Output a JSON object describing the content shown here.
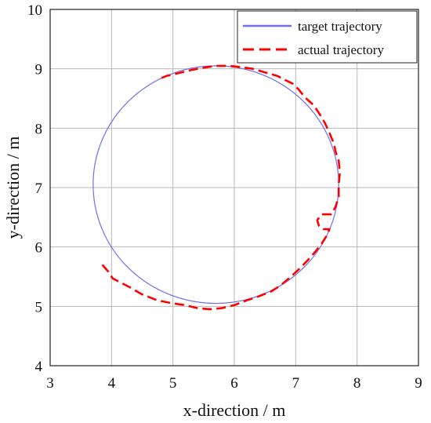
{
  "chart_data": {
    "type": "line",
    "xlabel": "x-direction / m",
    "ylabel": "y-direction / m",
    "xlim": [
      3,
      9
    ],
    "ylim": [
      4,
      10
    ],
    "xticks": [
      3,
      4,
      5,
      6,
      7,
      8,
      9
    ],
    "yticks": [
      4,
      5,
      6,
      7,
      8,
      9,
      10
    ],
    "grid": true,
    "legend_position": "top-right",
    "series": [
      {
        "name": "target trajectory",
        "style": "solid",
        "color": "#6F6FF0",
        "circle": {
          "center": [
            5.7,
            7.05
          ],
          "radius": 2.0
        }
      },
      {
        "name": "actual trajectory",
        "style": "dashed",
        "color": "#FF0000",
        "points": [
          [
            3.85,
            5.7
          ],
          [
            3.95,
            5.58
          ],
          [
            4.02,
            5.47
          ],
          [
            4.15,
            5.4
          ],
          [
            4.3,
            5.32
          ],
          [
            4.5,
            5.2
          ],
          [
            4.75,
            5.1
          ],
          [
            5.0,
            5.05
          ],
          [
            5.2,
            5.02
          ],
          [
            5.4,
            4.97
          ],
          [
            5.6,
            4.95
          ],
          [
            5.8,
            4.97
          ],
          [
            6.0,
            5.02
          ],
          [
            6.2,
            5.1
          ],
          [
            6.4,
            5.17
          ],
          [
            6.6,
            5.25
          ],
          [
            6.75,
            5.35
          ],
          [
            6.9,
            5.48
          ],
          [
            7.05,
            5.62
          ],
          [
            7.2,
            5.78
          ],
          [
            7.32,
            5.92
          ],
          [
            7.42,
            6.05
          ],
          [
            7.5,
            6.18
          ],
          [
            7.55,
            6.3
          ],
          [
            7.45,
            6.3
          ],
          [
            7.38,
            6.35
          ],
          [
            7.35,
            6.45
          ],
          [
            7.42,
            6.55
          ],
          [
            7.58,
            6.55
          ],
          [
            7.65,
            6.68
          ],
          [
            7.7,
            6.85
          ],
          [
            7.7,
            7.05
          ],
          [
            7.72,
            7.25
          ],
          [
            7.7,
            7.45
          ],
          [
            7.65,
            7.6
          ],
          [
            7.62,
            7.75
          ],
          [
            7.55,
            7.92
          ],
          [
            7.48,
            8.08
          ],
          [
            7.4,
            8.22
          ],
          [
            7.3,
            8.38
          ],
          [
            7.15,
            8.52
          ],
          [
            7.05,
            8.65
          ],
          [
            6.95,
            8.75
          ],
          [
            6.85,
            8.8
          ],
          [
            6.7,
            8.88
          ],
          [
            6.5,
            8.94
          ],
          [
            6.3,
            9.0
          ],
          [
            6.1,
            9.03
          ],
          [
            5.9,
            9.05
          ],
          [
            5.7,
            9.05
          ],
          [
            5.5,
            9.02
          ],
          [
            5.3,
            8.98
          ],
          [
            5.1,
            8.93
          ],
          [
            4.9,
            8.88
          ],
          [
            4.75,
            8.82
          ]
        ]
      }
    ]
  }
}
